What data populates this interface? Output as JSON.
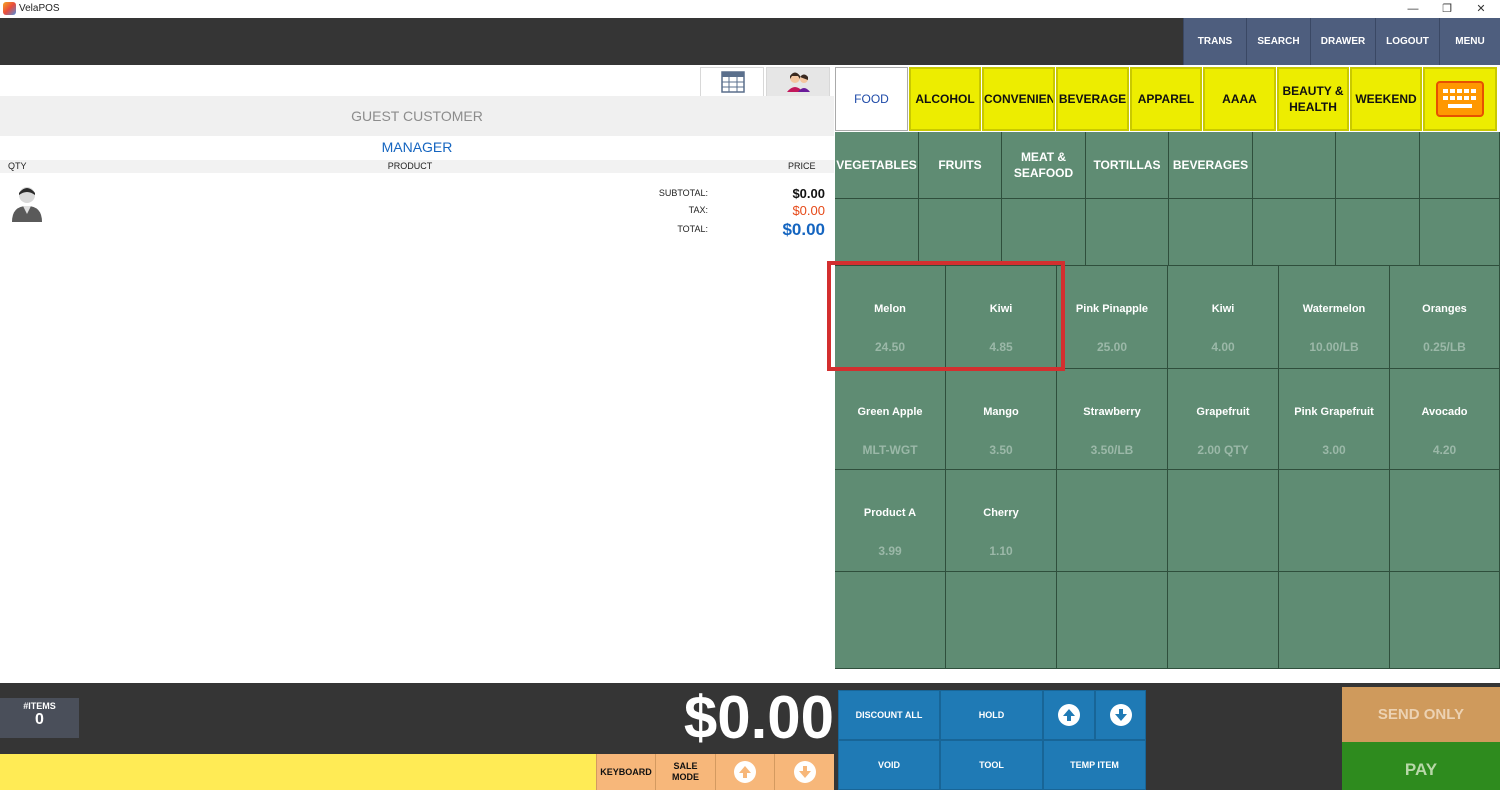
{
  "window": {
    "title": "VelaPOS"
  },
  "topbar": {
    "buttons": [
      "TRANS",
      "SEARCH",
      "DRAWER",
      "LOGOUT",
      "MENU"
    ]
  },
  "customer": {
    "guest_label": "GUEST CUSTOMER",
    "employee": "MANAGER",
    "columns": {
      "qty": "QTY",
      "product": "PRODUCT",
      "price": "PRICE"
    }
  },
  "totals": {
    "subtotal_label": "SUBTOTAL:",
    "subtotal": "$0.00",
    "tax_label": "TAX:",
    "tax": "$0.00",
    "total_label": "TOTAL:",
    "total": "$0.00"
  },
  "categories": [
    "FOOD",
    "ALCOHOL",
    "CONVENIENCE",
    "BEVERAGE",
    "APPAREL",
    "AAAA",
    "BEAUTY & HEALTH",
    "WEEKEND"
  ],
  "subcategories": [
    "VEGETABLES",
    "FRUITS",
    "MEAT &\nSEAFOOD",
    "TORTILLAS",
    "BEVERAGES"
  ],
  "products": [
    {
      "name": "Melon",
      "price": "24.50"
    },
    {
      "name": "Kiwi",
      "price": "4.85"
    },
    {
      "name": "Pink Pinapple",
      "price": "25.00"
    },
    {
      "name": "Kiwi",
      "price": "4.00"
    },
    {
      "name": "Watermelon",
      "price": "10.00/LB"
    },
    {
      "name": "Oranges",
      "price": "0.25/LB"
    },
    {
      "name": "Green Apple",
      "price": "MLT-WGT"
    },
    {
      "name": "Mango",
      "price": "3.50"
    },
    {
      "name": "Strawberry",
      "price": "3.50/LB"
    },
    {
      "name": "Grapefruit",
      "price": "2.00 QTY"
    },
    {
      "name": "Pink Grapefruit",
      "price": "3.00"
    },
    {
      "name": "Avocado",
      "price": "4.20"
    },
    {
      "name": "Product A",
      "price": "3.99"
    },
    {
      "name": "Cherry",
      "price": "1.10"
    }
  ],
  "bottom": {
    "items_label": "#ITEMS",
    "items_count": "0",
    "grand_total": "$0.00",
    "keyboard": "KEYBOARD",
    "sale_mode": "SALE\nMODE",
    "discount_all": "DISCOUNT ALL",
    "hold": "HOLD",
    "void": "VOID",
    "tool": "TOOL",
    "temp_item": "TEMP ITEM",
    "send_only": "SEND ONLY",
    "pay": "PAY"
  },
  "colors": {
    "header_bg": "#353535",
    "top_button": "#4e5e7e",
    "category_yellow": "#eded00",
    "grid_green": "#5f8c73",
    "accent_blue": "#1565c0",
    "tax_red": "#e64a19",
    "highlight_red": "#d32f2f",
    "pay_green": "#2e8b1e",
    "send_orange": "#cf9a5c"
  },
  "icons": {
    "list_tab": "list-grid-icon",
    "customer_tab": "customers-icon",
    "avatar": "user-avatar-icon",
    "keyboard": "keyboard-icon"
  }
}
